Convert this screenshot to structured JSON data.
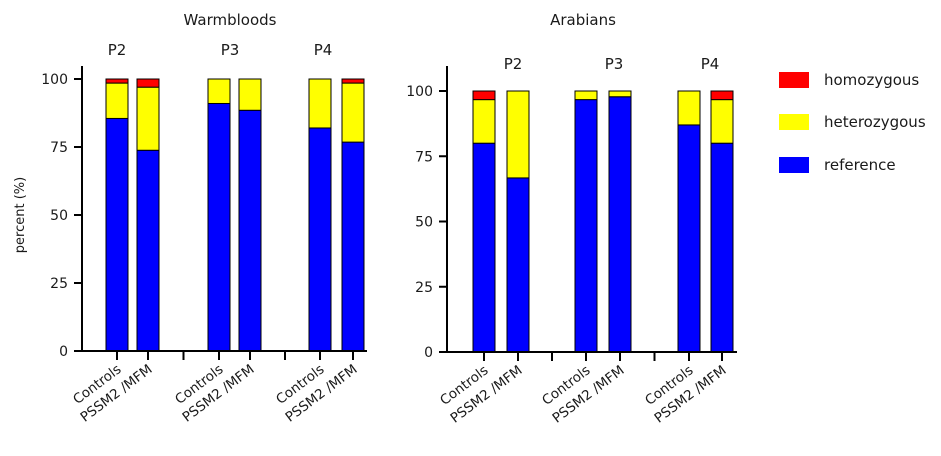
{
  "colors": {
    "homozygous": "#ff0000",
    "heterozygous": "#ffff00",
    "reference": "#0000ff",
    "axis": "#000000"
  },
  "legend": {
    "placement": "right",
    "entries": [
      {
        "key": "homozygous",
        "label": "homozygous"
      },
      {
        "key": "heterozygous",
        "label": "heterozygous"
      },
      {
        "key": "reference",
        "label": "reference"
      }
    ]
  },
  "chart_data": [
    {
      "type": "bar",
      "stacked": true,
      "title": "Warmbloods",
      "ylabel": "percent (%)",
      "ylim": [
        0,
        100
      ],
      "yticks": [
        0,
        25,
        50,
        75,
        100
      ],
      "groups": [
        "P2",
        "P3",
        "P4"
      ],
      "categories": [
        "Controls",
        "PSSM2 /MFM"
      ],
      "series": [
        {
          "name": "reference",
          "values": [
            [
              85.5,
              73.8
            ],
            [
              91,
              88.5
            ],
            [
              82,
              76.8
            ]
          ]
        },
        {
          "name": "heterozygous",
          "values": [
            [
              13,
              23.2
            ],
            [
              9,
              11.5
            ],
            [
              18,
              21.7
            ]
          ]
        },
        {
          "name": "homozygous",
          "values": [
            [
              1.5,
              3
            ],
            [
              0,
              0
            ],
            [
              0,
              1.5
            ]
          ]
        }
      ]
    },
    {
      "type": "bar",
      "stacked": true,
      "title": "Arabians",
      "ylabel": "",
      "ylim": [
        0,
        100
      ],
      "yticks": [
        0,
        25,
        50,
        75,
        100
      ],
      "groups": [
        "P2",
        "P3",
        "P4"
      ],
      "categories": [
        "Controls",
        "PSSM2 /MFM"
      ],
      "series": [
        {
          "name": "reference",
          "values": [
            [
              80,
              66.7
            ],
            [
              96.7,
              97.8
            ],
            [
              87,
              80
            ]
          ]
        },
        {
          "name": "heterozygous",
          "values": [
            [
              16.7,
              33.3
            ],
            [
              3.3,
              2.2
            ],
            [
              13,
              16.7
            ]
          ]
        },
        {
          "name": "homozygous",
          "values": [
            [
              3.3,
              0
            ],
            [
              0,
              0
            ],
            [
              0,
              3.3
            ]
          ]
        }
      ]
    }
  ]
}
